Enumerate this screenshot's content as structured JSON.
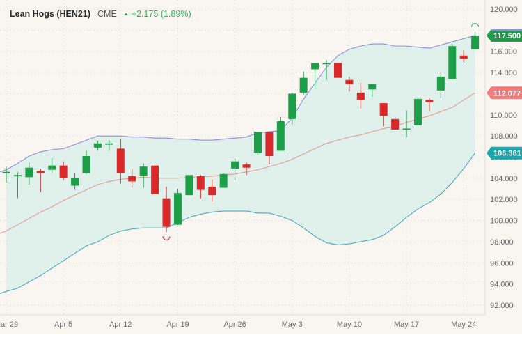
{
  "header": {
    "title": "Lean Hogs (HEN21)",
    "exchange": "CME",
    "change": "+2.175 (1.89%)",
    "change_direction": "up"
  },
  "colors": {
    "background": "#f9f6f1",
    "up_candle": "#1e9e48",
    "down_candle": "#d9292b",
    "band_fill": "#dcefea",
    "upper_band": "#8a8fd8",
    "lower_band": "#4aa9b3",
    "middle_band": "#e59a94",
    "last_price_tag": "#1e9e48",
    "middle_tag": "#f07c7c",
    "lower_tag": "#1aa5ad",
    "header_change": "#2fb153"
  },
  "price_tags": {
    "last": "117.500",
    "middle": "112.077",
    "lower": "106.381"
  },
  "chart_data": {
    "type": "candlestick",
    "title": "Lean Hogs (HEN21) CME",
    "subtitle": "+2.175 (1.89%)",
    "xlabel": "",
    "ylabel": "",
    "ylim": [
      91,
      121
    ],
    "yticks": [
      "92.000",
      "94.000",
      "96.000",
      "98.000",
      "100.000",
      "102.000",
      "104.000",
      "106.000",
      "108.000",
      "110.000",
      "112.000",
      "114.000",
      "116.000",
      "118.000",
      "120.000"
    ],
    "xticks": [
      "Mar 29",
      "Apr 5",
      "Apr 12",
      "Apr 19",
      "Apr 26",
      "May 3",
      "May 10",
      "May 17",
      "May 24"
    ],
    "grid": true,
    "overlay": "Bollinger Bands (upper, middle SMA, lower)",
    "candles": [
      {
        "date": "Mar 29",
        "o": 104.5,
        "h": 105.1,
        "l": 103.6,
        "c": 104.6
      },
      {
        "date": "Mar 30",
        "o": 104.3,
        "h": 104.6,
        "l": 102.1,
        "c": 104.3
      },
      {
        "date": "Mar 31",
        "o": 104.1,
        "h": 105.5,
        "l": 103.4,
        "c": 105.0
      },
      {
        "date": "Apr 1",
        "o": 104.7,
        "h": 104.9,
        "l": 102.7,
        "c": 104.5
      },
      {
        "date": "Apr 2",
        "o": 104.8,
        "h": 105.9,
        "l": 104.5,
        "c": 105.2
      },
      {
        "date": "Apr 5",
        "o": 105.2,
        "h": 105.6,
        "l": 103.8,
        "c": 104.0
      },
      {
        "date": "Apr 6",
        "o": 103.3,
        "h": 104.5,
        "l": 102.9,
        "c": 104.0
      },
      {
        "date": "Apr 7",
        "o": 104.5,
        "h": 106.6,
        "l": 104.4,
        "c": 106.1
      },
      {
        "date": "Apr 8",
        "o": 106.9,
        "h": 107.5,
        "l": 106.6,
        "c": 107.3
      },
      {
        "date": "Apr 9",
        "o": 107.2,
        "h": 107.6,
        "l": 106.6,
        "c": 107.3
      },
      {
        "date": "Apr 12",
        "o": 106.8,
        "h": 107.7,
        "l": 103.5,
        "c": 104.5
      },
      {
        "date": "Apr 13",
        "o": 104.2,
        "h": 104.9,
        "l": 103.1,
        "c": 103.7
      },
      {
        "date": "Apr 14",
        "o": 104.2,
        "h": 105.4,
        "l": 103.1,
        "c": 105.1
      },
      {
        "date": "Apr 15",
        "o": 105.2,
        "h": 105.2,
        "l": 102.5,
        "c": 102.5
      },
      {
        "date": "Apr 16",
        "o": 102.1,
        "h": 103.2,
        "l": 98.9,
        "c": 99.4
      },
      {
        "date": "Apr 19",
        "o": 99.6,
        "h": 103.0,
        "l": 99.6,
        "c": 102.6
      },
      {
        "date": "Apr 20",
        "o": 102.4,
        "h": 104.2,
        "l": 102.4,
        "c": 104.3
      },
      {
        "date": "Apr 21",
        "o": 104.2,
        "h": 104.3,
        "l": 102.1,
        "c": 102.9
      },
      {
        "date": "Apr 22",
        "o": 103.2,
        "h": 103.9,
        "l": 101.8,
        "c": 102.4
      },
      {
        "date": "Apr 23",
        "o": 103.1,
        "h": 104.5,
        "l": 103.1,
        "c": 104.4
      },
      {
        "date": "Apr 26",
        "o": 104.9,
        "h": 105.9,
        "l": 103.8,
        "c": 105.6
      },
      {
        "date": "Apr 27",
        "o": 105.3,
        "h": 105.5,
        "l": 104.3,
        "c": 105.0
      },
      {
        "date": "Apr 28",
        "o": 106.4,
        "h": 108.2,
        "l": 106.2,
        "c": 108.4
      },
      {
        "date": "Apr 29",
        "o": 108.4,
        "h": 108.4,
        "l": 105.3,
        "c": 106.1
      },
      {
        "date": "Apr 30",
        "o": 106.6,
        "h": 109.8,
        "l": 106.6,
        "c": 109.4
      },
      {
        "date": "May 3",
        "o": 109.6,
        "h": 112.1,
        "l": 109.1,
        "c": 112.0
      },
      {
        "date": "May 4",
        "o": 112.1,
        "h": 114.1,
        "l": 111.9,
        "c": 113.5
      },
      {
        "date": "May 5",
        "o": 114.3,
        "h": 114.8,
        "l": 112.5,
        "c": 114.9
      },
      {
        "date": "May 6",
        "o": 114.9,
        "h": 115.2,
        "l": 113.3,
        "c": 114.9
      },
      {
        "date": "May 7",
        "o": 114.9,
        "h": 114.9,
        "l": 113.5,
        "c": 113.5
      },
      {
        "date": "May 10",
        "o": 113.3,
        "h": 113.6,
        "l": 112.2,
        "c": 112.9
      },
      {
        "date": "May 11",
        "o": 112.1,
        "h": 113.0,
        "l": 110.6,
        "c": 111.4
      },
      {
        "date": "May 12",
        "o": 112.4,
        "h": 112.8,
        "l": 111.7,
        "c": 112.9
      },
      {
        "date": "May 13",
        "o": 111.1,
        "h": 111.1,
        "l": 108.9,
        "c": 109.9
      },
      {
        "date": "May 14",
        "o": 109.6,
        "h": 109.8,
        "l": 108.7,
        "c": 108.6
      },
      {
        "date": "May 17",
        "o": 108.6,
        "h": 110.4,
        "l": 107.9,
        "c": 108.7
      },
      {
        "date": "May 18",
        "o": 109.0,
        "h": 111.7,
        "l": 109.0,
        "c": 111.5
      },
      {
        "date": "May 19",
        "o": 111.4,
        "h": 111.6,
        "l": 110.3,
        "c": 111.2
      },
      {
        "date": "May 20",
        "o": 112.3,
        "h": 114.0,
        "l": 111.6,
        "c": 113.6
      },
      {
        "date": "May 21",
        "o": 113.4,
        "h": 116.7,
        "l": 113.4,
        "c": 116.5
      },
      {
        "date": "May 24",
        "o": 115.6,
        "h": 116.1,
        "l": 115.0,
        "c": 115.3
      },
      {
        "date": "May 25",
        "o": 116.2,
        "h": 117.8,
        "l": 116.2,
        "c": 117.5
      }
    ],
    "upper_band": [
      104.8,
      105.4,
      106.1,
      106.5,
      106.7,
      106.8,
      107.2,
      107.6,
      108.0,
      108.0,
      108.0,
      107.9,
      107.9,
      107.8,
      107.8,
      107.7,
      107.7,
      107.6,
      107.6,
      107.7,
      107.8,
      107.9,
      108.3,
      108.4,
      108.5,
      109.7,
      111.5,
      113.0,
      114.5,
      115.6,
      116.2,
      116.5,
      116.7,
      116.7,
      116.5,
      116.5,
      116.4,
      116.3,
      116.6,
      116.9,
      117.2,
      117.5
    ],
    "middle_band": [
      99.0,
      99.6,
      100.2,
      100.8,
      101.3,
      101.9,
      102.4,
      102.9,
      103.4,
      103.7,
      103.9,
      104.0,
      104.1,
      104.0,
      104.0,
      104.0,
      104.1,
      104.1,
      104.2,
      104.3,
      104.4,
      104.6,
      104.8,
      105.1,
      105.4,
      105.8,
      106.3,
      106.8,
      107.3,
      107.6,
      107.9,
      108.1,
      108.4,
      108.7,
      108.9,
      109.3,
      109.6,
      109.9,
      110.3,
      110.7,
      111.4,
      112.077
    ],
    "lower_band": [
      93.3,
      93.6,
      94.2,
      94.8,
      95.5,
      96.2,
      96.9,
      97.6,
      98.0,
      98.6,
      99.0,
      99.2,
      99.3,
      99.3,
      99.3,
      99.8,
      100.3,
      100.6,
      100.8,
      100.9,
      100.9,
      100.9,
      100.7,
      100.7,
      100.4,
      100.0,
      99.3,
      98.5,
      97.9,
      97.7,
      97.8,
      98.0,
      98.2,
      98.6,
      99.4,
      100.3,
      101.1,
      101.7,
      102.5,
      103.6,
      104.9,
      106.381
    ]
  }
}
